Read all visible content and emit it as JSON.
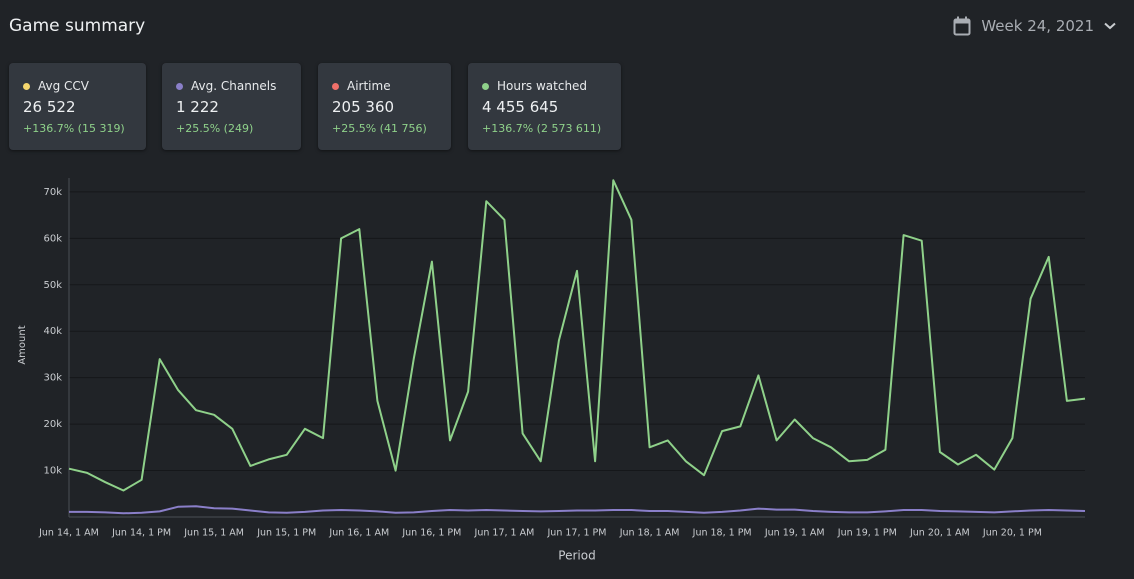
{
  "header": {
    "title": "Game summary",
    "period": "Week 24, 2021"
  },
  "cards": [
    {
      "label": "Avg CCV",
      "color": "#f5d76e",
      "value": "26 522",
      "change": "+136.7% (15 319)"
    },
    {
      "label": "Avg. Channels",
      "color": "#8a7fc9",
      "value": "1 222",
      "change": "+25.5% (249)"
    },
    {
      "label": "Airtime",
      "color": "#f0706a",
      "value": "205 360",
      "change": "+25.5% (41 756)"
    },
    {
      "label": "Hours watched",
      "color": "#8fd18a",
      "value": "4 455 645",
      "change": "+136.7% (2 573 611)"
    }
  ],
  "chart_data": {
    "type": "line",
    "x_label": "Period",
    "y_label": "Amount",
    "categories": [
      "Jun 14, 1 AM",
      null,
      null,
      null,
      "Jun 14, 1 PM",
      null,
      null,
      null,
      "Jun 15, 1 AM",
      null,
      null,
      null,
      "Jun 15, 1 PM",
      null,
      null,
      null,
      "Jun 16, 1 AM",
      null,
      null,
      null,
      "Jun 16, 1 PM",
      null,
      null,
      null,
      "Jun 17, 1 AM",
      null,
      null,
      null,
      "Jun 17, 1 PM",
      null,
      null,
      null,
      "Jun 18, 1 AM",
      null,
      null,
      null,
      "Jun 18, 1 PM",
      null,
      null,
      null,
      "Jun 19, 1 AM",
      null,
      null,
      null,
      "Jun 19, 1 PM",
      null,
      null,
      null,
      "Jun 20, 1 AM",
      null,
      null,
      null,
      "Jun 20, 1 PM",
      null,
      null,
      null,
      null
    ],
    "series": [
      {
        "name": "Hours watched",
        "color": "#8fd18a",
        "values": [
          10400,
          9500,
          7500,
          5700,
          8000,
          34000,
          27400,
          23000,
          22000,
          19000,
          11000,
          12400,
          13400,
          19000,
          17000,
          60000,
          62000,
          25000,
          10000,
          34000,
          55000,
          16500,
          27000,
          68000,
          64000,
          18000,
          12000,
          38000,
          53000,
          12000,
          72500,
          64000,
          15000,
          16500,
          12000,
          9000,
          18500,
          19500,
          30500,
          16500,
          21000,
          17000,
          15000,
          12000,
          12300,
          14500,
          60700,
          59500,
          14000,
          11300,
          13400,
          10200,
          17000,
          47000,
          56000,
          25000,
          25500
        ]
      },
      {
        "name": "Avg. Channels",
        "color": "#8a7fc9",
        "values": [
          1100,
          1100,
          1000,
          800,
          900,
          1200,
          2200,
          2300,
          1900,
          1800,
          1400,
          1000,
          900,
          1100,
          1400,
          1500,
          1400,
          1200,
          900,
          1000,
          1300,
          1500,
          1400,
          1500,
          1400,
          1300,
          1200,
          1300,
          1400,
          1400,
          1500,
          1500,
          1300,
          1300,
          1100,
          900,
          1100,
          1400,
          1800,
          1600,
          1600,
          1300,
          1100,
          1000,
          1000,
          1200,
          1500,
          1500,
          1300,
          1200,
          1100,
          1000,
          1200,
          1400,
          1500,
          1400,
          1300
        ]
      }
    ],
    "ylim": [
      0,
      73000
    ],
    "yticks": [
      {
        "value": 10000,
        "label": "10k"
      },
      {
        "value": 20000,
        "label": "20k"
      },
      {
        "value": 30000,
        "label": "30k"
      },
      {
        "value": 40000,
        "label": "40k"
      },
      {
        "value": 50000,
        "label": "50k"
      },
      {
        "value": 60000,
        "label": "60k"
      },
      {
        "value": 70000,
        "label": "70k"
      }
    ],
    "grid": true
  }
}
